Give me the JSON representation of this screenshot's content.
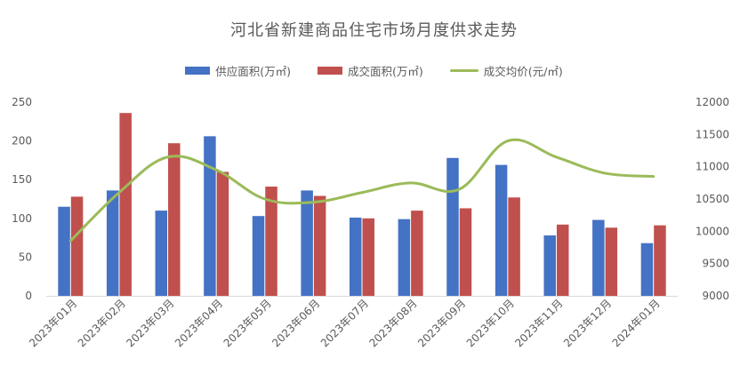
{
  "chart_data": {
    "type": "bar",
    "title": "河北省新建商品住宅市场月度供求走势",
    "categories": [
      "2023年01月",
      "2023年02月",
      "2023年03月",
      "2023年04月",
      "2023年05月",
      "2023年06月",
      "2023年07月",
      "2023年08月",
      "2023年09月",
      "2023年10月",
      "2023年11月",
      "2023年12月",
      "2024年01月"
    ],
    "series": [
      {
        "name": "供应面积(万㎡)",
        "kind": "bar",
        "axis": "left",
        "color": "#4472C4",
        "values": [
          115,
          136,
          110,
          206,
          103,
          136,
          101,
          99,
          178,
          169,
          78,
          98,
          68
        ]
      },
      {
        "name": "成交面积(万㎡)",
        "kind": "bar",
        "axis": "left",
        "color": "#C0504D",
        "values": [
          128,
          236,
          197,
          160,
          141,
          129,
          100,
          110,
          113,
          127,
          92,
          88,
          91
        ]
      },
      {
        "name": "成交均价(元/㎡)",
        "kind": "line",
        "axis": "right",
        "color": "#9BBB59",
        "values": [
          9850,
          10600,
          11150,
          10950,
          10500,
          10450,
          10600,
          10750,
          10650,
          11400,
          11150,
          10900,
          10850
        ]
      }
    ],
    "y_left": {
      "min": 0,
      "max": 250,
      "ticks": [
        0,
        50,
        100,
        150,
        200,
        250
      ]
    },
    "y_right": {
      "min": 9000,
      "max": 12000,
      "ticks": [
        9000,
        9500,
        10000,
        10500,
        11000,
        11500,
        12000
      ]
    },
    "legend_position": "top",
    "grid": false
  }
}
